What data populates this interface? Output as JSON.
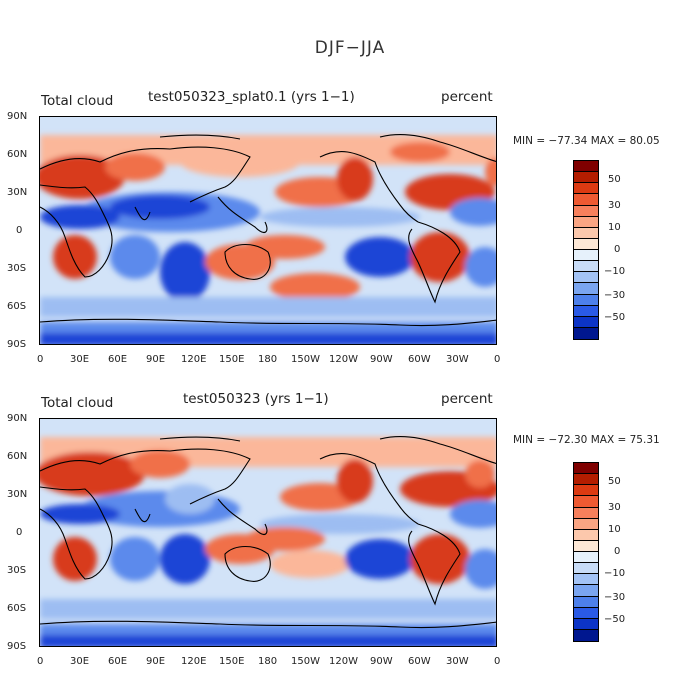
{
  "figure_title": "DJF−JJA",
  "panels": [
    {
      "variable": "Total cloud",
      "case": "test050323_splat0.1 (yrs 1−1)",
      "units": "percent",
      "stats": {
        "min_label": "MIN =",
        "min": "−77.34",
        "max_label": "MAX =",
        "max": "80.05"
      }
    },
    {
      "variable": "Total cloud",
      "case": "test050323 (yrs 1−1)",
      "units": "percent",
      "stats": {
        "min_label": "MIN =",
        "min": "−72.30",
        "max_label": "MAX =",
        "max": "75.31"
      }
    }
  ],
  "axes": {
    "lat_ticks": [
      "90N",
      "60N",
      "30N",
      "0",
      "30S",
      "60S",
      "90S"
    ],
    "lon_ticks": [
      "0",
      "30E",
      "60E",
      "90E",
      "120E",
      "150E",
      "180",
      "150W",
      "120W",
      "90W",
      "60W",
      "30W",
      "0"
    ]
  },
  "colorbar": {
    "labels": [
      "50",
      "30",
      "10",
      "0",
      "−10",
      "−30",
      "−50"
    ],
    "colors": [
      "#7f0000",
      "#b31d00",
      "#dc3a12",
      "#ef5a32",
      "#f7805c",
      "#faa583",
      "#fcc8ac",
      "#fde8d6",
      "#e6f1fb",
      "#c8dcf7",
      "#a3c3f5",
      "#7aa5f0",
      "#4d80eb",
      "#2a5ae6",
      "#0c34c7",
      "#00178f"
    ]
  },
  "map_colors": {
    "ocean_base": "#d2e3f8",
    "land_line": "#000000",
    "pos_strong": "#d83a1c",
    "pos_mid": "#f07048",
    "pos_weak": "#fbb79a",
    "neg_weak": "#9dbdf2",
    "neg_mid": "#5b8aec",
    "neg_strong": "#1f45d6"
  }
}
